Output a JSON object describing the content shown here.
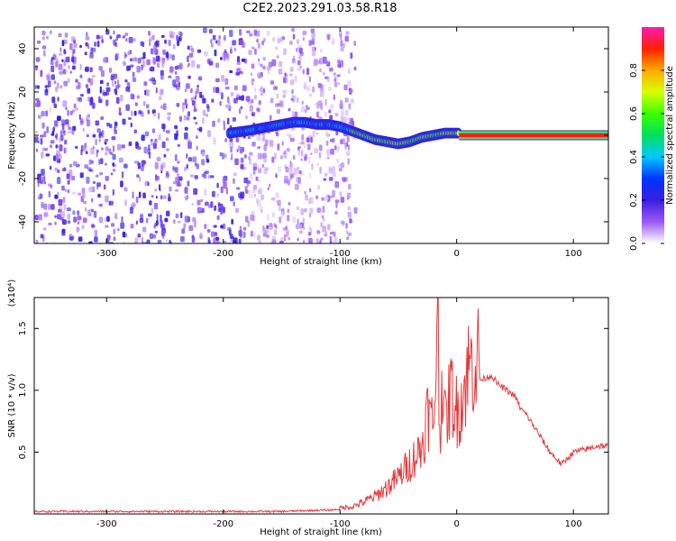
{
  "title": "C2E2.2023.291.03.58.R18",
  "chart_data": [
    {
      "type": "heatmap",
      "panel": "spectrogram",
      "xlabel": "Height of straight line (km)",
      "ylabel": "Frequency (Hz)",
      "xlim": [
        -362,
        130
      ],
      "ylim": [
        -50,
        50
      ],
      "x_ticks": [
        -300,
        -200,
        -100,
        0,
        100
      ],
      "y_ticks": [
        -40,
        -20,
        0,
        20,
        40
      ],
      "colorbar": {
        "label": "Normalized spectral amplitude",
        "range": [
          0,
          1
        ],
        "ticks": [
          0.0,
          0.2,
          0.4,
          0.6,
          0.8
        ],
        "colormap": [
          "#ffffff",
          "#9b59f5",
          "#3a1ee0",
          "#0033ff",
          "#00c8ff",
          "#00e060",
          "#3cff00",
          "#d8ff00",
          "#ffaa00",
          "#ff2000",
          "#ff1ab4"
        ]
      },
      "noise_region_x": [
        -362,
        -88
      ],
      "signal_track": {
        "x": [
          -195,
          -180,
          -170,
          -160,
          -150,
          -140,
          -130,
          -120,
          -110,
          -100,
          -90,
          -80,
          -70,
          -60,
          -50,
          -40,
          -30,
          -20,
          -10,
          0,
          30,
          60,
          90,
          130
        ],
        "y": [
          1,
          2,
          3,
          4,
          5,
          6,
          6,
          5,
          5,
          4,
          2,
          0,
          -2,
          -3,
          -4,
          -3,
          -1,
          0,
          1,
          1,
          0,
          0,
          0,
          0
        ]
      }
    },
    {
      "type": "line",
      "panel": "snr",
      "xlabel": "Height of straight line (km)",
      "ylabel": "SNR (10 * v/v)",
      "scale_note": "(x10⁴)",
      "xlim": [
        -362,
        130
      ],
      "ylim": [
        0,
        1.75
      ],
      "x_ticks": [
        -300,
        -200,
        -100,
        0,
        100
      ],
      "y_ticks": [
        0.5,
        1.0,
        1.5
      ],
      "line_color": "#e8373a",
      "series": [
        {
          "x": [
            -362,
            -300,
            -200,
            -150,
            -120,
            -110,
            -100,
            -90,
            -80,
            -70,
            -60,
            -50,
            -40,
            -30,
            -25,
            -20,
            -17,
            -15,
            -12,
            -10,
            -5,
            0,
            5,
            10,
            15,
            20,
            25,
            30,
            35,
            40,
            50,
            55,
            60,
            70,
            80,
            90,
            95,
            100,
            110,
            120,
            130
          ],
          "values": [
            0.02,
            0.02,
            0.02,
            0.02,
            0.03,
            0.03,
            0.04,
            0.05,
            0.08,
            0.12,
            0.18,
            0.25,
            0.35,
            0.45,
            0.7,
            0.6,
            1.2,
            0.5,
            1.0,
            0.6,
            0.85,
            0.7,
            0.8,
            1.0,
            1.05,
            1.08,
            1.1,
            1.12,
            1.05,
            1.02,
            0.95,
            0.85,
            0.8,
            0.65,
            0.5,
            0.4,
            0.45,
            0.5,
            0.52,
            0.55,
            0.55
          ]
        }
      ]
    }
  ]
}
